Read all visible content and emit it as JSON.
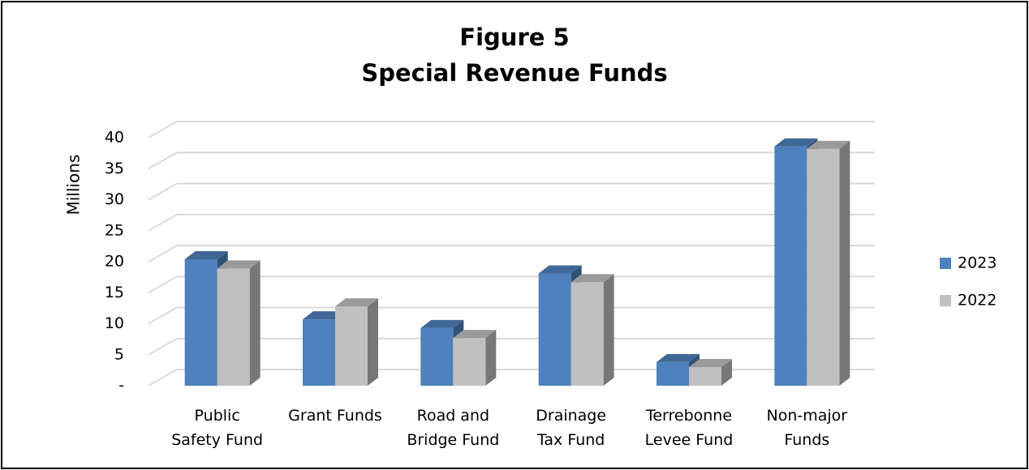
{
  "chart_data": {
    "type": "bar3d",
    "title": "Figure 5",
    "subtitle": "Special Revenue Funds",
    "y_label": "Millions",
    "categories": [
      "Public\nSafety Fund",
      "Grant Funds",
      "Road and\nBridge Fund",
      "Drainage\nTax Fund",
      "Terrebonne\nLevee Fund",
      "Non-major\nFunds"
    ],
    "series": [
      {
        "name": "2023",
        "color": "#4f81bd",
        "values": [
          20.4,
          10.7,
          9.3,
          18.1,
          3.8,
          38.6
        ]
      },
      {
        "name": "2022",
        "color": "#c0c0c0",
        "values": [
          18.9,
          12.8,
          7.7,
          16.7,
          3.0,
          38.2
        ]
      }
    ],
    "ylim": [
      0,
      40
    ],
    "yticks": [
      {
        "value": 0,
        "label": "-"
      },
      5,
      10,
      15,
      20,
      25,
      30,
      35,
      40
    ],
    "grid": true,
    "legend": "right"
  }
}
